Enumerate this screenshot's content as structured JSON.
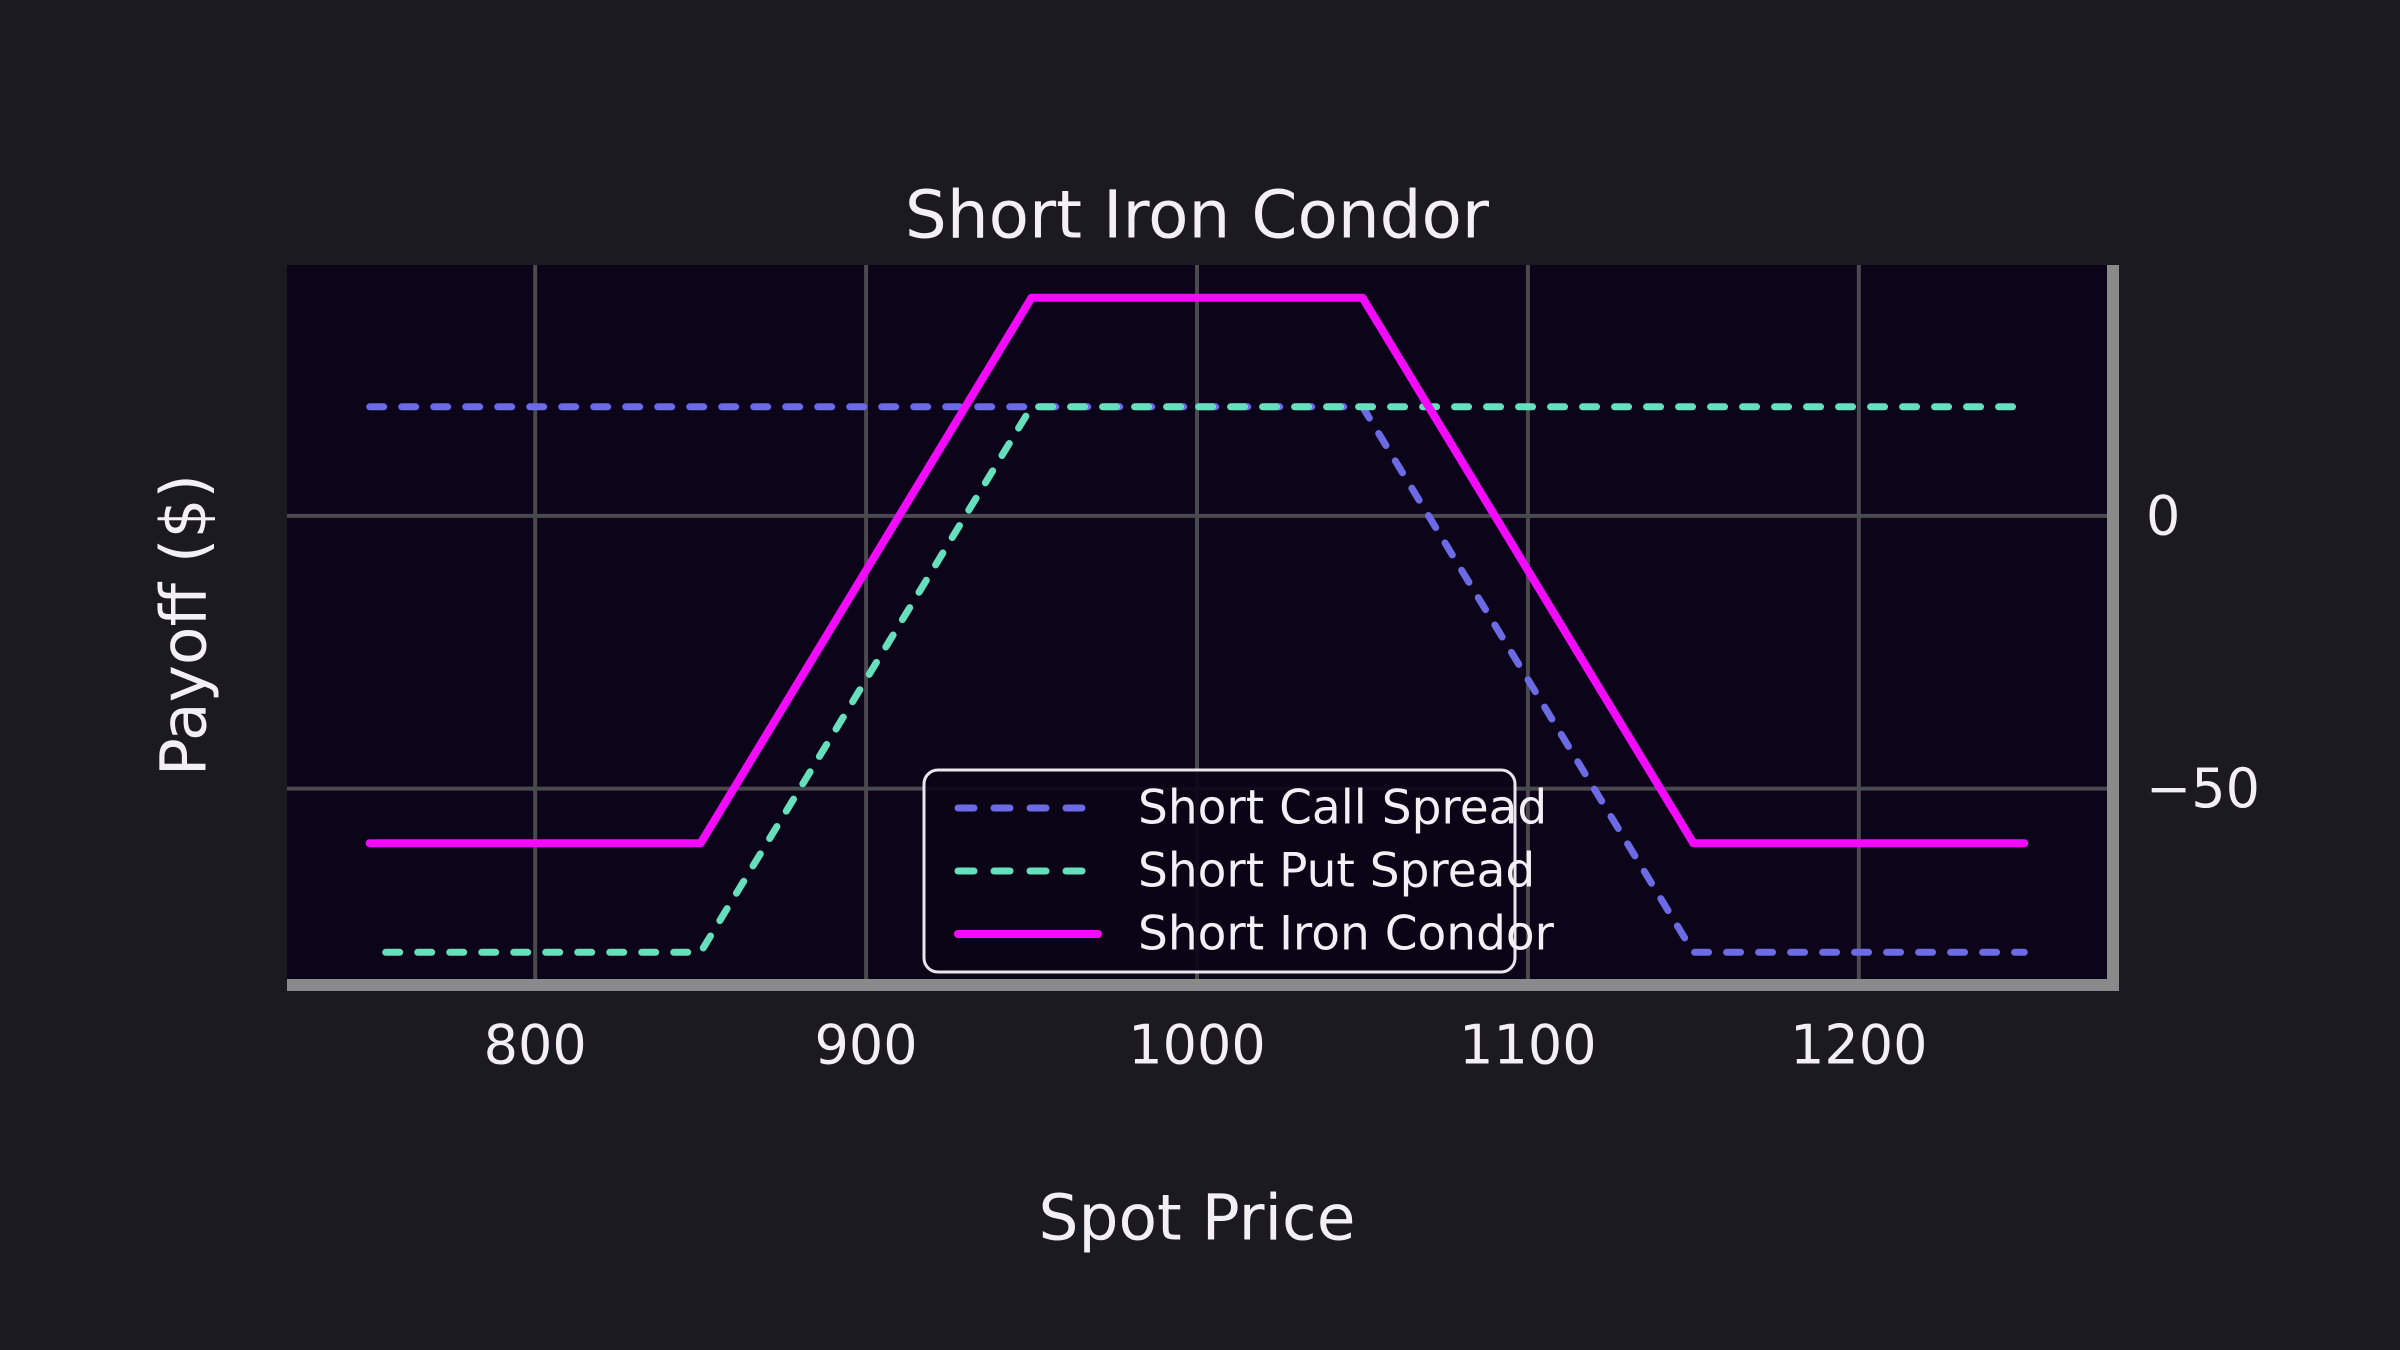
{
  "title": "Short Iron Condor",
  "chart_data": {
    "type": "line",
    "title": "Short Iron Condor",
    "xlabel": "Spot Price",
    "ylabel": "Payoff ($)",
    "xlim": [
      725,
      1275
    ],
    "ylim": [
      -86,
      46
    ],
    "grid": true,
    "grid_x_values": [
      800,
      900,
      1000,
      1100,
      1200
    ],
    "grid_y_values": [
      0,
      -50
    ],
    "x_ticks": [
      {
        "value": 800,
        "label": "800"
      },
      {
        "value": 900,
        "label": "900"
      },
      {
        "value": 1000,
        "label": "1000"
      },
      {
        "value": 1100,
        "label": "1100"
      },
      {
        "value": 1200,
        "label": "1200"
      }
    ],
    "y_ticks": [
      {
        "value": 0,
        "label": "0"
      },
      {
        "value": -50,
        "label": "−50"
      }
    ],
    "y_ticks_side": "right",
    "legend_position": "inside lower center",
    "series": [
      {
        "name": "Short Call Spread",
        "color": "#6c6ae4",
        "style": "dashed",
        "x": [
          750,
          1050,
          1150,
          1250
        ],
        "y": [
          20,
          20,
          -80,
          -80
        ]
      },
      {
        "name": "Short Put Spread",
        "color": "#66e0bc",
        "style": "dashed",
        "x": [
          750,
          850,
          950,
          1250
        ],
        "y": [
          -80,
          -80,
          20,
          20
        ]
      },
      {
        "name": "Short Iron Condor",
        "color": "#f30aff",
        "style": "solid",
        "x": [
          750,
          850,
          950,
          1050,
          1150,
          1250
        ],
        "y": [
          -60,
          -60,
          40,
          40,
          -60,
          -60
        ]
      }
    ],
    "strikes": [
      850,
      950,
      1050,
      1150
    ],
    "net_credit": 40,
    "max_loss": -60,
    "colors": {
      "figure_bg": "#1c1a21",
      "axes_bg": "#0c0418",
      "grid": "#4a494e",
      "spine": "#8a8a8a",
      "text": "#f2f0f5",
      "legend_border": "#e8e6ec",
      "legend_bg": "#0c0418"
    }
  }
}
